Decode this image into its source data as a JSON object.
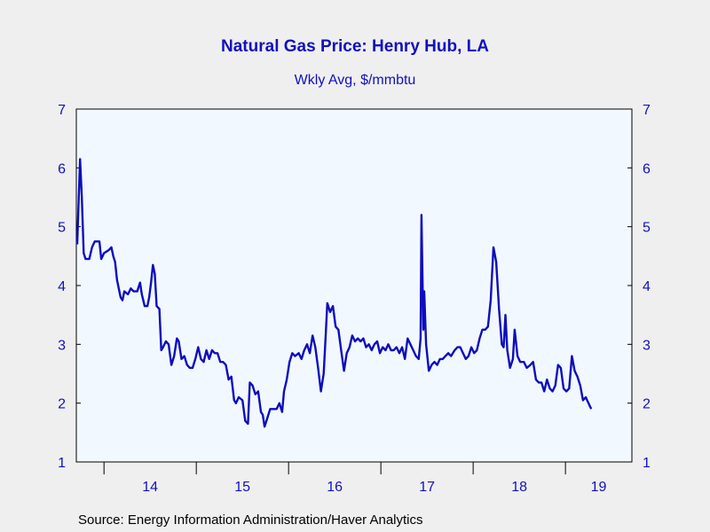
{
  "chart_data": {
    "type": "line",
    "title": "Natural Gas Price: Henry Hub, LA",
    "subtitle": "Wkly Avg, $/mmbtu",
    "source": "Source:  Energy Information Administration/Haver Analytics",
    "ylim": [
      1,
      7
    ],
    "y_ticks": [
      "1",
      "2",
      "3",
      "4",
      "5",
      "6",
      "7"
    ],
    "x_range": [
      2013.7,
      2019.72
    ],
    "x_tick_labels": [
      "14",
      "15",
      "16",
      "17",
      "18",
      "19"
    ],
    "grid": false,
    "colors": {
      "line": "#0d0dbd",
      "text": "#1010c0",
      "plot_bg": "#f2f8ff",
      "page_bg": "#efefef"
    },
    "series": [
      {
        "values": [
          [
            2013.71,
            4.7
          ],
          [
            2013.72,
            5.2
          ],
          [
            2013.74,
            6.15
          ],
          [
            2013.76,
            5.5
          ],
          [
            2013.78,
            4.55
          ],
          [
            2013.8,
            4.45
          ],
          [
            2013.84,
            4.45
          ],
          [
            2013.87,
            4.65
          ],
          [
            2013.9,
            4.75
          ],
          [
            2013.95,
            4.75
          ],
          [
            2013.97,
            4.45
          ],
          [
            2014.0,
            4.55
          ],
          [
            2014.05,
            4.6
          ],
          [
            2014.08,
            4.65
          ],
          [
            2014.1,
            4.5
          ],
          [
            2014.12,
            4.4
          ],
          [
            2014.14,
            4.1
          ],
          [
            2014.16,
            3.95
          ],
          [
            2014.18,
            3.8
          ],
          [
            2014.2,
            3.75
          ],
          [
            2014.22,
            3.9
          ],
          [
            2014.26,
            3.85
          ],
          [
            2014.29,
            3.95
          ],
          [
            2014.32,
            3.9
          ],
          [
            2014.36,
            3.9
          ],
          [
            2014.39,
            4.05
          ],
          [
            2014.41,
            3.85
          ],
          [
            2014.44,
            3.65
          ],
          [
            2014.47,
            3.65
          ],
          [
            2014.49,
            3.8
          ],
          [
            2014.51,
            4.05
          ],
          [
            2014.53,
            4.35
          ],
          [
            2014.55,
            4.2
          ],
          [
            2014.57,
            3.65
          ],
          [
            2014.6,
            3.6
          ],
          [
            2014.62,
            2.9
          ],
          [
            2014.64,
            2.95
          ],
          [
            2014.67,
            3.05
          ],
          [
            2014.7,
            3.0
          ],
          [
            2014.73,
            2.65
          ],
          [
            2014.76,
            2.8
          ],
          [
            2014.79,
            3.1
          ],
          [
            2014.81,
            3.05
          ],
          [
            2014.84,
            2.75
          ],
          [
            2014.87,
            2.8
          ],
          [
            2014.9,
            2.65
          ],
          [
            2014.93,
            2.6
          ],
          [
            2014.96,
            2.6
          ],
          [
            2014.99,
            2.75
          ],
          [
            2015.02,
            2.95
          ],
          [
            2015.05,
            2.75
          ],
          [
            2015.08,
            2.7
          ],
          [
            2015.11,
            2.9
          ],
          [
            2015.14,
            2.75
          ],
          [
            2015.17,
            2.9
          ],
          [
            2015.2,
            2.85
          ],
          [
            2015.23,
            2.85
          ],
          [
            2015.26,
            2.7
          ],
          [
            2015.29,
            2.7
          ],
          [
            2015.32,
            2.65
          ],
          [
            2015.35,
            2.4
          ],
          [
            2015.38,
            2.45
          ],
          [
            2015.41,
            2.05
          ],
          [
            2015.43,
            2.0
          ],
          [
            2015.46,
            2.1
          ],
          [
            2015.5,
            2.05
          ],
          [
            2015.53,
            1.7
          ],
          [
            2015.56,
            1.65
          ],
          [
            2015.58,
            2.35
          ],
          [
            2015.61,
            2.3
          ],
          [
            2015.64,
            2.15
          ],
          [
            2015.67,
            2.2
          ],
          [
            2015.7,
            1.85
          ],
          [
            2015.72,
            1.8
          ],
          [
            2015.74,
            1.6
          ],
          [
            2015.77,
            1.75
          ],
          [
            2015.8,
            1.9
          ],
          [
            2015.84,
            1.9
          ],
          [
            2015.87,
            1.9
          ],
          [
            2015.9,
            2.0
          ],
          [
            2015.93,
            1.85
          ],
          [
            2015.95,
            2.2
          ],
          [
            2015.98,
            2.4
          ],
          [
            2016.01,
            2.7
          ],
          [
            2016.04,
            2.85
          ],
          [
            2016.07,
            2.8
          ],
          [
            2016.11,
            2.85
          ],
          [
            2016.14,
            2.75
          ],
          [
            2016.17,
            2.9
          ],
          [
            2016.2,
            3.0
          ],
          [
            2016.23,
            2.85
          ],
          [
            2016.26,
            3.15
          ],
          [
            2016.29,
            2.95
          ],
          [
            2016.32,
            2.6
          ],
          [
            2016.35,
            2.2
          ],
          [
            2016.38,
            2.5
          ],
          [
            2016.4,
            3.1
          ],
          [
            2016.42,
            3.7
          ],
          [
            2016.45,
            3.55
          ],
          [
            2016.48,
            3.65
          ],
          [
            2016.51,
            3.3
          ],
          [
            2016.54,
            3.25
          ],
          [
            2016.57,
            2.9
          ],
          [
            2016.6,
            2.55
          ],
          [
            2016.63,
            2.85
          ],
          [
            2016.66,
            2.95
          ],
          [
            2016.69,
            3.15
          ],
          [
            2016.72,
            3.05
          ],
          [
            2016.75,
            3.1
          ],
          [
            2016.78,
            3.05
          ],
          [
            2016.81,
            3.1
          ],
          [
            2016.84,
            2.95
          ],
          [
            2016.87,
            3.0
          ],
          [
            2016.9,
            2.9
          ],
          [
            2016.93,
            3.0
          ],
          [
            2016.96,
            3.05
          ],
          [
            2016.99,
            2.85
          ],
          [
            2017.02,
            2.95
          ],
          [
            2017.05,
            2.9
          ],
          [
            2017.08,
            3.0
          ],
          [
            2017.11,
            2.9
          ],
          [
            2017.14,
            2.9
          ],
          [
            2017.17,
            2.95
          ],
          [
            2017.2,
            2.85
          ],
          [
            2017.23,
            2.95
          ],
          [
            2017.26,
            2.75
          ],
          [
            2017.29,
            3.1
          ],
          [
            2017.32,
            3.0
          ],
          [
            2017.35,
            2.9
          ],
          [
            2017.38,
            2.8
          ],
          [
            2017.41,
            2.75
          ],
          [
            2017.43,
            3.1
          ],
          [
            2017.44,
            5.2
          ],
          [
            2017.46,
            3.25
          ],
          [
            2017.47,
            3.9
          ],
          [
            2017.49,
            3.0
          ],
          [
            2017.52,
            2.55
          ],
          [
            2017.55,
            2.65
          ],
          [
            2017.58,
            2.7
          ],
          [
            2017.61,
            2.65
          ],
          [
            2017.64,
            2.75
          ],
          [
            2017.67,
            2.75
          ],
          [
            2017.7,
            2.8
          ],
          [
            2017.73,
            2.85
          ],
          [
            2017.76,
            2.8
          ],
          [
            2017.8,
            2.9
          ],
          [
            2017.83,
            2.95
          ],
          [
            2017.86,
            2.95
          ],
          [
            2017.89,
            2.85
          ],
          [
            2017.92,
            2.75
          ],
          [
            2017.95,
            2.8
          ],
          [
            2017.98,
            2.95
          ],
          [
            2018.01,
            2.85
          ],
          [
            2018.04,
            2.9
          ],
          [
            2018.07,
            3.1
          ],
          [
            2018.1,
            3.25
          ],
          [
            2018.13,
            3.25
          ],
          [
            2018.16,
            3.3
          ],
          [
            2018.19,
            3.75
          ],
          [
            2018.22,
            4.65
          ],
          [
            2018.25,
            4.4
          ],
          [
            2018.28,
            3.6
          ],
          [
            2018.31,
            3.0
          ],
          [
            2018.33,
            2.95
          ],
          [
            2018.35,
            3.5
          ],
          [
            2018.37,
            2.9
          ],
          [
            2018.4,
            2.6
          ],
          [
            2018.43,
            2.75
          ],
          [
            2018.45,
            3.25
          ],
          [
            2018.48,
            2.8
          ],
          [
            2018.51,
            2.7
          ],
          [
            2018.55,
            2.7
          ],
          [
            2018.58,
            2.6
          ],
          [
            2018.62,
            2.65
          ],
          [
            2018.65,
            2.7
          ],
          [
            2018.68,
            2.4
          ],
          [
            2018.71,
            2.35
          ],
          [
            2018.74,
            2.35
          ],
          [
            2018.77,
            2.2
          ],
          [
            2018.8,
            2.4
          ],
          [
            2018.83,
            2.25
          ],
          [
            2018.86,
            2.2
          ],
          [
            2018.89,
            2.3
          ],
          [
            2018.92,
            2.65
          ],
          [
            2018.95,
            2.6
          ],
          [
            2018.98,
            2.25
          ],
          [
            2019.01,
            2.2
          ],
          [
            2019.04,
            2.25
          ],
          [
            2019.07,
            2.8
          ],
          [
            2019.1,
            2.55
          ],
          [
            2019.13,
            2.45
          ],
          [
            2019.16,
            2.3
          ],
          [
            2019.19,
            2.05
          ],
          [
            2019.22,
            2.1
          ],
          [
            2019.25,
            2.0
          ],
          [
            2019.28,
            1.9
          ]
        ]
      }
    ]
  }
}
